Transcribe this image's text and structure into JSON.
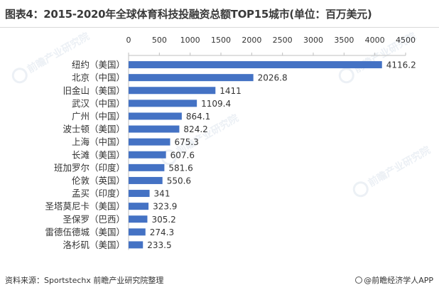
{
  "title": "图表4：2015-2020年全球体育科技投融资总额TOP15城市(单位：百万美元)",
  "source": "资料来源：Sportstechx 前瞻产业研究院整理",
  "brand": "@前瞻经济学人APP",
  "watermark_text": "前瞻产业研究院",
  "colors": {
    "bar": "#4472C4",
    "axis": "#bfbfbf",
    "text": "#333333"
  },
  "chart_data": {
    "type": "bar",
    "orientation": "horizontal",
    "title": "图表4：2015-2020年全球体育科技投融资总额TOP15城市(单位：百万美元)",
    "categories": [
      "纽约（美国）",
      "北京（中国）",
      "旧金山（美国）",
      "武汉（中国）",
      "广州（中国）",
      "波士顿（美国）",
      "上海（中国）",
      "长滩（美国）",
      "班加罗尔（印度）",
      "伦敦（英国）",
      "孟买（印度）",
      "圣塔莫尼卡（美国）",
      "圣保罗（巴西）",
      "雷德伍德城（美国）",
      "洛杉矶（美国）"
    ],
    "values": [
      4116.2,
      2026.8,
      1411,
      1109.4,
      864.1,
      824.2,
      675.3,
      607.6,
      581.6,
      550.6,
      341,
      323.9,
      305.2,
      274.3,
      233.5
    ],
    "value_labels": [
      "4116.2",
      "2026.8",
      "1411",
      "1109.4",
      "864.1",
      "824.2",
      "675.3",
      "607.6",
      "581.6",
      "550.6",
      "341",
      "323.9",
      "305.2",
      "274.3",
      "233.5"
    ],
    "xlim": [
      0,
      4500
    ],
    "x_ticks": [
      0,
      500,
      1000,
      1500,
      2000,
      2500,
      3000,
      3500,
      4000,
      4500
    ],
    "x_axis_position": "top",
    "grid": false,
    "legend": "none"
  }
}
